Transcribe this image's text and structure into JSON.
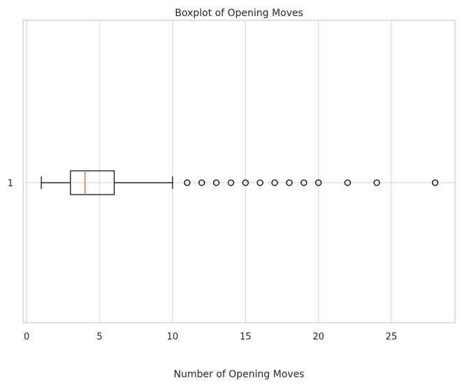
{
  "chart_data": {
    "type": "boxplot",
    "title": "Boxplot of Opening Moves",
    "xlabel": "Number of Opening Moves",
    "ylabel": "",
    "orientation": "horizontal",
    "xlim": [
      -0.35,
      29.35
    ],
    "x_ticks": [
      0,
      5,
      10,
      15,
      20,
      25
    ],
    "y_ticks": [
      "1"
    ],
    "grid": true,
    "boxes": [
      {
        "label": "1",
        "whisker_low": 1,
        "q1": 3,
        "median": 4,
        "q3": 6,
        "whisker_high": 10,
        "outliers": [
          11,
          12,
          13,
          14,
          15,
          16,
          17,
          18,
          19,
          20,
          22,
          24,
          28
        ]
      }
    ],
    "colors": {
      "box": "#000000",
      "median": "#e3693a",
      "grid": "#d9d9d9",
      "frame": "#cccccc",
      "text": "#262626"
    }
  }
}
